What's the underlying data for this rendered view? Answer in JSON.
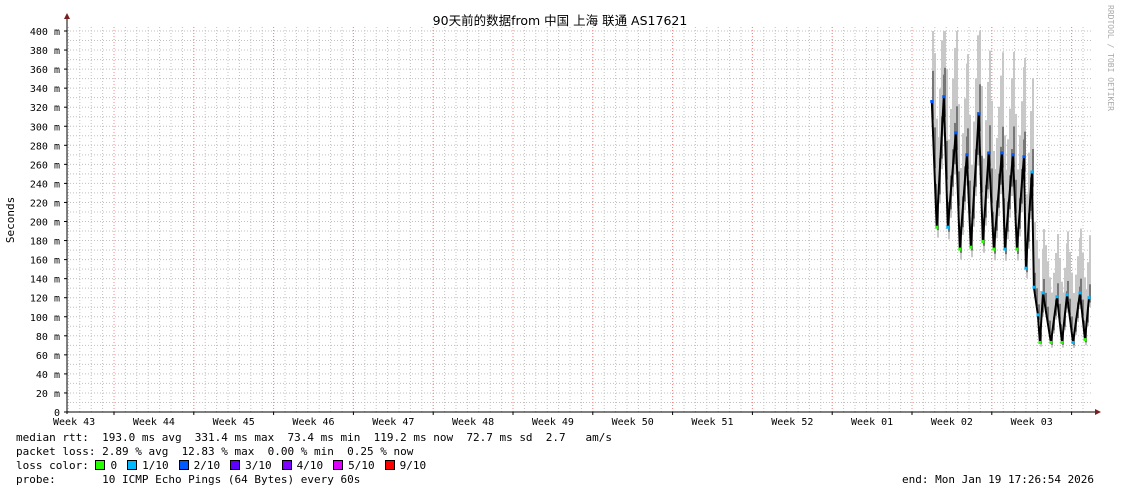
{
  "chart_data": {
    "type": "line",
    "title": "90天前的数据from 中国 上海 联通 AS17621",
    "ylabel": "Seconds",
    "watermark": "RRDTOOL / TOBI OETIKER",
    "ylim": [
      0,
      0.4
    ],
    "y_ticks": [
      "0",
      "20 m",
      "40 m",
      "60 m",
      "80 m",
      "100 m",
      "120 m",
      "140 m",
      "160 m",
      "180 m",
      "200 m",
      "220 m",
      "240 m",
      "260 m",
      "280 m",
      "300 m",
      "320 m",
      "340 m",
      "360 m",
      "380 m",
      "400 m"
    ],
    "x_ticks": [
      "Week 43",
      "Week 44",
      "Week 45",
      "Week 46",
      "Week 47",
      "Week 48",
      "Week 49",
      "Week 50",
      "Week 51",
      "Week 52",
      "Week 01",
      "Week 02",
      "Week 03"
    ],
    "x_end": "2026-01-19T17:26:54",
    "x_span_days": 90,
    "grid": true,
    "colors": {
      "median": "#000000",
      "smoke": "#c8c8c8",
      "major_grid": "#ff8080",
      "minor_grid": "#c0c0c0"
    },
    "series": [
      {
        "unit": "ms",
        "points": [
          {
            "t": "2026-01-05T14:00",
            "v": 326,
            "loss": 2
          },
          {
            "t": "2026-01-06T00:30",
            "v": 194,
            "loss": 0
          },
          {
            "t": "2026-01-06T15:15",
            "v": 331,
            "loss": 2
          },
          {
            "t": "2026-01-06T23:40",
            "v": 194,
            "loss": 1
          },
          {
            "t": "2026-01-07T16:35",
            "v": 293,
            "loss": 2
          },
          {
            "t": "2026-01-08T01:00",
            "v": 171,
            "loss": 0
          },
          {
            "t": "2026-01-08T15:50",
            "v": 270,
            "loss": 2
          },
          {
            "t": "2026-01-09T00:10",
            "v": 173,
            "loss": 0
          },
          {
            "t": "2026-01-09T17:05",
            "v": 313,
            "loss": 2
          },
          {
            "t": "2026-01-10T01:30",
            "v": 179,
            "loss": 0
          },
          {
            "t": "2026-01-10T14:10",
            "v": 272,
            "loss": 2
          },
          {
            "t": "2026-01-11T00:40",
            "v": 171,
            "loss": 0
          },
          {
            "t": "2026-01-11T17:35",
            "v": 272,
            "loss": 2
          },
          {
            "t": "2026-01-11T23:55",
            "v": 171,
            "loss": 1
          },
          {
            "t": "2026-01-12T16:50",
            "v": 270,
            "loss": 2
          },
          {
            "t": "2026-01-13T01:10",
            "v": 171,
            "loss": 0
          },
          {
            "t": "2026-01-13T16:00",
            "v": 268,
            "loss": 2
          },
          {
            "t": "2026-01-13T20:10",
            "v": 151,
            "loss": 1
          },
          {
            "t": "2026-01-14T08:50",
            "v": 252,
            "loss": 1
          },
          {
            "t": "2026-01-14T13:05",
            "v": 131,
            "loss": 1
          },
          {
            "t": "2026-01-14T21:30",
            "v": 102,
            "loss": 1
          },
          {
            "t": "2026-01-15T01:40",
            "v": 73,
            "loss": 0
          },
          {
            "t": "2026-01-15T08:05",
            "v": 125,
            "loss": 1
          },
          {
            "t": "2026-01-16T00:55",
            "v": 73,
            "loss": 0
          },
          {
            "t": "2026-01-16T13:35",
            "v": 121,
            "loss": 1
          },
          {
            "t": "2026-01-17T00:05",
            "v": 73,
            "loss": 0
          },
          {
            "t": "2026-01-17T10:40",
            "v": 123,
            "loss": 1
          },
          {
            "t": "2026-01-17T23:20",
            "v": 73,
            "loss": 1
          },
          {
            "t": "2026-01-18T14:05",
            "v": 125,
            "loss": 1
          },
          {
            "t": "2026-01-19T00:35",
            "v": 76,
            "loss": 0
          },
          {
            "t": "2026-01-19T09:05",
            "v": 120,
            "loss": 1
          }
        ]
      }
    ]
  },
  "legend": {
    "median_rtt": "median rtt:  193.0 ms avg  331.4 ms max  73.4 ms min  119.2 ms now  72.7 ms sd  2.7   am/s",
    "packet_loss": "packet loss: 2.89 % avg  12.83 % max  0.00 % min  0.25 % now",
    "loss_color_label": "loss color: ",
    "loss_colors": [
      {
        "label": "0",
        "color": "#26ff00"
      },
      {
        "label": "1/10",
        "color": "#00b8ff"
      },
      {
        "label": "2/10",
        "color": "#0059ff"
      },
      {
        "label": "3/10",
        "color": "#5e00ff"
      },
      {
        "label": "4/10",
        "color": "#7e00ff"
      },
      {
        "label": "5/10",
        "color": "#dd00ff"
      },
      {
        "label": "9/10",
        "color": "#ff0000"
      }
    ],
    "probe": "probe:       10 ICMP Echo Pings (64 Bytes) every 60s",
    "end": "end: Mon Jan 19 17:26:54 2026"
  }
}
